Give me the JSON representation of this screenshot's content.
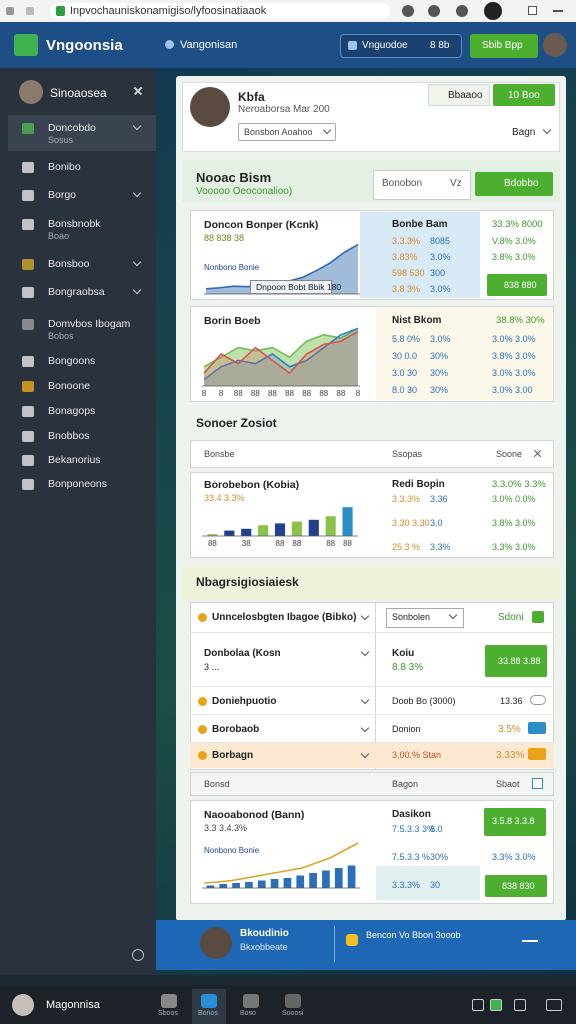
{
  "browser": {
    "url": "Inpvochauniskonamigiso/lyfoosinatiaaok"
  },
  "header": {
    "brand": "Vngoonsia",
    "location": "Vangonisan",
    "search": "Vnguodoe",
    "search_badge": "8 8b",
    "cta": "Sbib Bpp"
  },
  "sidebar": {
    "user": "Sinoaosea",
    "items": [
      {
        "label": "Doncobdo",
        "sub": "Sosus"
      },
      {
        "label": "Bonibo"
      },
      {
        "label": "Borgo"
      },
      {
        "label": "Bonsbnobk",
        "sub": "Boao"
      },
      {
        "label": "Bonsboo"
      },
      {
        "label": "Bongraobsa"
      },
      {
        "label": "Domvbos Ibogam",
        "sub": "Bobos"
      },
      {
        "label": "Bongoons"
      },
      {
        "label": "Bonoone"
      },
      {
        "label": "Bonagops"
      },
      {
        "label": "Bnobbos"
      },
      {
        "label": "Bekanorius"
      },
      {
        "label": "Bonponeons"
      }
    ]
  },
  "profile": {
    "name": "Kbfa",
    "subtitle": "Neroaborsa Mar 200",
    "select": "Bonsbon Aoahoo",
    "button1": "Bbaaoo",
    "button2": "10 Boo",
    "menu": "Bagn"
  },
  "section1": {
    "title": "Nooac Bism",
    "subtitle": "Vooooo Oeoconalioo)",
    "input": "Bonobon",
    "input_suffix": "Vz",
    "button": "Bdobbo"
  },
  "cards": [
    {
      "title": "Doncon Bonper (Kcnk)",
      "subtitle": "88 838 38",
      "note": "Nonbono Bonie",
      "caption": "Dnpoon Bobt Bbik 180",
      "side_title": "Bonbe Bam",
      "side_value": "33.3% 8000",
      "rows": [
        [
          "3.3.3%",
          "8085",
          "V.8% 3.0%"
        ],
        [
          "3.83%",
          "3.0%",
          "3.8% 3.0%"
        ],
        [
          "598 530",
          "300"
        ],
        [
          "3.8 3%",
          "3.0%"
        ]
      ],
      "button": "838 880",
      "chart": {
        "type": "area",
        "ylim": [
          0,
          10
        ],
        "series": [
          {
            "color": "#2e6bb0",
            "values": [
              1,
              1.2,
              1.5,
              1.4,
              1.8,
              2,
              2.5,
              3.2,
              4.5,
              6,
              8,
              9.5
            ]
          }
        ]
      }
    },
    {
      "title": "Borin Boeb",
      "side_title": "Nist Bkom",
      "side_value": "38.8% 30%",
      "rows": [
        [
          "5.8 0%",
          "3.0%",
          "3.0% 3.0%"
        ],
        [
          "30 0.0",
          "30%",
          "3.8% 3.0%"
        ],
        [
          "3.0 30",
          "30%",
          "3.0% 3.0%"
        ],
        [
          "8.0 30",
          "30%",
          "3.0% 3.00"
        ]
      ],
      "chart": {
        "type": "area",
        "ylim": [
          0,
          10
        ],
        "labels": [
          "8",
          "8",
          "88",
          "88",
          "88",
          "88",
          "88",
          "88",
          "88",
          "8"
        ],
        "series": [
          {
            "color": "#6fbf4a",
            "values": [
              3,
              4.5,
              6,
              5.5,
              6,
              4.5,
              7,
              8,
              7.5,
              9
            ]
          },
          {
            "color": "#3a7cc3",
            "values": [
              1,
              3,
              4,
              3.5,
              5,
              3,
              4,
              6,
              8,
              9
            ]
          },
          {
            "color": "#d9534f",
            "values": [
              2,
              5,
              3.5,
              6,
              4,
              2,
              5,
              6.5,
              7,
              8.5
            ]
          }
        ]
      }
    },
    {
      "title": "Borobebon (Kobia)",
      "subtitle": "33.4 3.3%",
      "side_title": "Redi Bopin",
      "side_value": "3.3.0% 3.3%",
      "rows": [
        [
          "3.3.3%",
          "3.36",
          "3.0% 0.0%"
        ],
        [
          "3.30 3.30",
          "3.0",
          "3.8% 3.0%"
        ],
        [
          "25.3 %",
          "3.3%",
          "3.3% 3.0%"
        ]
      ],
      "chart": {
        "type": "bar",
        "ylim": [
          0,
          10
        ],
        "labels": [
          "88",
          null,
          "38",
          null,
          "88",
          "88",
          null,
          "88",
          "88"
        ],
        "colors": [
          "#8bc34a",
          "#1f3f8f",
          "#1f3f8f",
          "#8bc34a",
          "#1f3f8f",
          "#8bc34a",
          "#1f3f8f",
          "#8bc34a",
          "#2a8fc9"
        ],
        "values": [
          0.5,
          1.5,
          2,
          3,
          3.5,
          4,
          4.5,
          5.5,
          8
        ]
      }
    },
    {
      "title": "Naooabonod (Bann)",
      "subtitle": "3.3 3.4.3%",
      "note": "Nonbono Bonie",
      "side_title": "Dasikon",
      "rows": [
        [
          "7.5.3.3 3%",
          "8.0"
        ],
        [
          "7.5.3.3 %",
          "30%",
          "3.3% 3.0%"
        ],
        [
          "3.3.3%",
          "30"
        ]
      ],
      "button": "3.5.8 3.3.8",
      "button2": "838 830",
      "chart": {
        "type": "combo",
        "ylim": [
          0,
          10
        ],
        "bar_color": "#2a6fb8",
        "line_color": "#d9a52a",
        "bars": [
          0.5,
          0.8,
          1,
          1.2,
          1.5,
          1.8,
          2,
          2.5,
          3,
          3.5,
          4,
          4.5
        ],
        "line": [
          1,
          1.2,
          1.5,
          2,
          2.5,
          3,
          3.5,
          4,
          5,
          6,
          7.5,
          9
        ]
      }
    }
  ],
  "section2": {
    "title": "Sonoer Zosiot",
    "headers": [
      "Bonsbe",
      "Ssopas",
      "Soone"
    ]
  },
  "section3": {
    "title": "Nbagrsigiosiaiesk"
  },
  "list": [
    {
      "label": "Unncelosbgten Ibagoe (Bibko)",
      "select": "Sonbolen",
      "value": "Sdoni"
    },
    {
      "label": "Donbolaa (Kosn",
      "sub": "3 ...",
      "right_title": "Koiu",
      "right_value": "8.8 3%",
      "button": "33.88 3.88"
    },
    {
      "label": "Doniehpuotio",
      "right": "Doob Bo (3000)",
      "value": "13.36"
    },
    {
      "label": "Borobaob",
      "right": "Donion",
      "value": "3.5%"
    },
    {
      "label": "Borbagn",
      "right": "3.00.% Stan",
      "value": "3.33%"
    }
  ],
  "table2": {
    "headers": [
      "Bonsd",
      "Bagon",
      "Sbaot"
    ]
  },
  "footer": {
    "name": "Bkoudinio",
    "sub": "Bkxobbeate",
    "info": "Bencon Vo Bbon 3ooob"
  },
  "taskbar": {
    "title": "Magonnisa",
    "items": [
      "Sboos",
      "Bonos",
      "Boso",
      "Sooosi"
    ]
  }
}
